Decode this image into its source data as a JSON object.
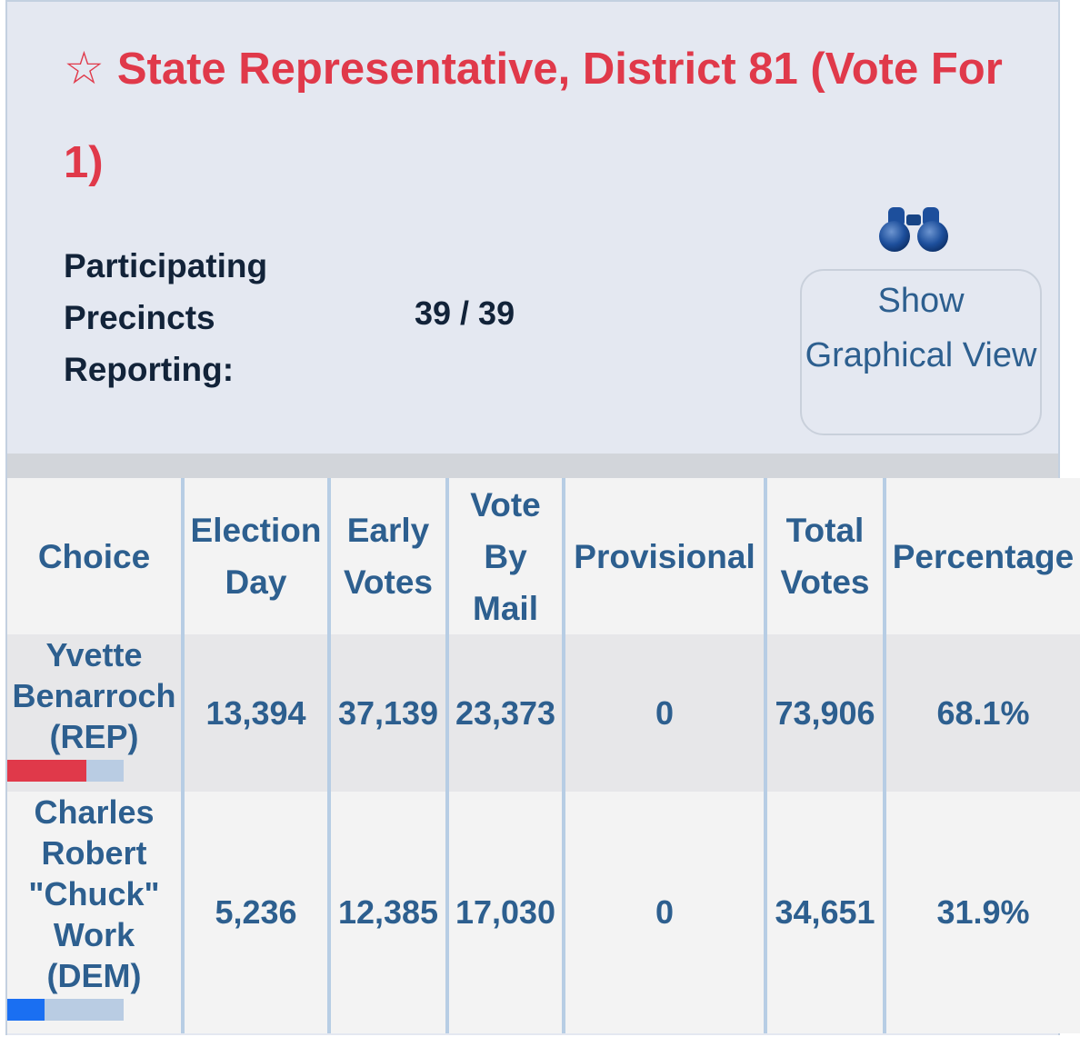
{
  "contest": {
    "title": "State Representative, District 81 (Vote For 1)",
    "star_glyph": "☆",
    "precincts_label": "Participating Precincts Reporting:",
    "precincts_value": "39 / 39",
    "graph_button_label": "Show Graphical View",
    "binoculars_icon": "binoculars-icon"
  },
  "table": {
    "headers": [
      "Choice",
      "Election Day",
      "Early Votes",
      "Vote By Mail",
      "Provisional",
      "Total Votes",
      "Percentage"
    ],
    "rows": [
      {
        "name": "Yvette Benarroch (REP)",
        "election_day": "13,394",
        "early_votes": "37,139",
        "vote_by_mail": "23,373",
        "provisional": "0",
        "total_votes": "73,906",
        "percentage": "68.1%",
        "share": 0.681,
        "bar_color": "#e0394a"
      },
      {
        "name": "Charles Robert \"Chuck\" Work (DEM)",
        "election_day": "5,236",
        "early_votes": "12,385",
        "vote_by_mail": "17,030",
        "provisional": "0",
        "total_votes": "34,651",
        "percentage": "31.9%",
        "share": 0.319,
        "bar_color": "#1a6ff2"
      }
    ]
  },
  "colors": {
    "title": "#e0394a",
    "link_text": "#2d5f8f",
    "panel_bg": "#e4e8f1",
    "bar_track": "#b9cce3"
  }
}
